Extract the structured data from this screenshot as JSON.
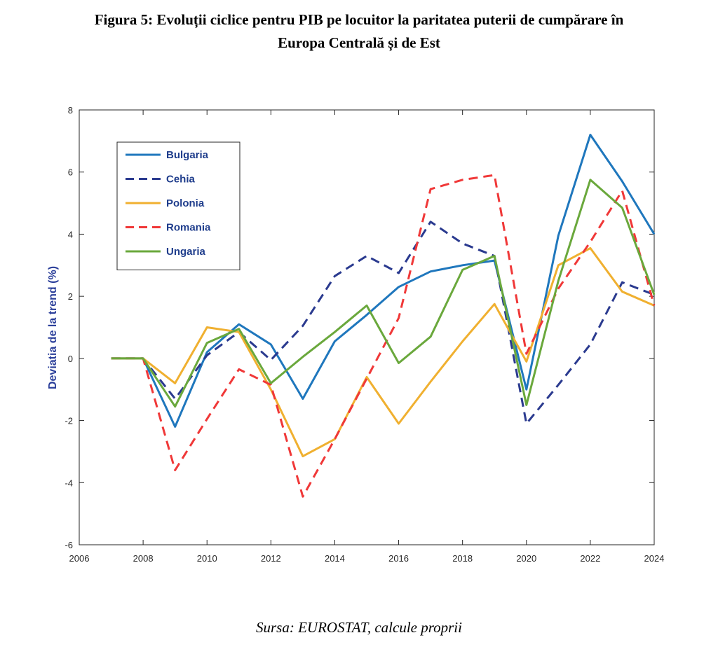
{
  "title_line1": "Figura 5: Evoluții ciclice pentru PIB pe locuitor la paritatea puterii de cumpărare în",
  "title_line2": "Europa Centrală și de Est",
  "source": "Sursa: EUROSTAT, calcule proprii",
  "chart_data": {
    "type": "line",
    "ylabel": "Deviatia de la trend (%)",
    "xlim": [
      2006,
      2024
    ],
    "ylim": [
      -6,
      8
    ],
    "xticks": [
      2006,
      2008,
      2010,
      2012,
      2014,
      2016,
      2018,
      2020,
      2022,
      2024
    ],
    "yticks": [
      -6,
      -4,
      -2,
      0,
      2,
      4,
      6,
      8
    ],
    "grid": false,
    "legend_position": "top-left",
    "x": [
      2007,
      2008,
      2009,
      2010,
      2011,
      2012,
      2013,
      2014,
      2015,
      2016,
      2017,
      2018,
      2019,
      2020,
      2021,
      2022,
      2023,
      2024
    ],
    "series": [
      {
        "name": "Bulgaria",
        "color": "#1f77bd",
        "dash": "solid",
        "values": [
          0,
          0,
          -2.2,
          0.2,
          1.1,
          0.45,
          -1.3,
          0.55,
          1.4,
          2.3,
          2.8,
          3.0,
          3.15,
          -1.0,
          3.95,
          7.2,
          5.7,
          4.0
        ]
      },
      {
        "name": "Cehia",
        "color": "#2a3a8f",
        "dash": "dashed",
        "values": [
          0,
          0,
          -1.3,
          0.1,
          0.85,
          -0.05,
          1.05,
          2.65,
          3.3,
          2.75,
          4.4,
          3.7,
          3.3,
          -2.1,
          -0.85,
          0.45,
          2.45,
          2.05
        ]
      },
      {
        "name": "Polonia",
        "color": "#f0b030",
        "dash": "solid",
        "values": [
          0,
          0,
          -0.8,
          1.0,
          0.85,
          -1.0,
          -3.15,
          -2.6,
          -0.6,
          -2.1,
          -0.75,
          0.55,
          1.75,
          -0.1,
          3.0,
          3.55,
          2.15,
          1.7
        ]
      },
      {
        "name": "Romania",
        "color": "#f03838",
        "dash": "dashed",
        "values": [
          0,
          0,
          -3.6,
          -1.95,
          -0.35,
          -0.85,
          -4.45,
          -2.6,
          -0.65,
          1.3,
          5.45,
          5.75,
          5.9,
          0.15,
          2.25,
          3.75,
          5.4,
          1.7
        ]
      },
      {
        "name": "Ungaria",
        "color": "#6aa83c",
        "dash": "solid",
        "values": [
          0,
          0,
          -1.55,
          0.5,
          0.95,
          -0.8,
          0.05,
          0.85,
          1.7,
          -0.15,
          0.7,
          2.85,
          3.3,
          -1.5,
          2.5,
          5.75,
          4.85,
          2.05
        ]
      }
    ]
  }
}
